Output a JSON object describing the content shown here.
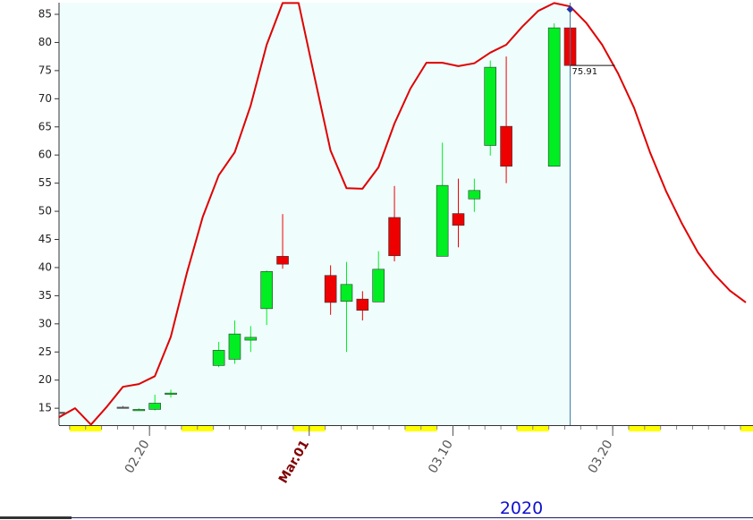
{
  "chart_data": {
    "type": "candlestick",
    "x": [
      "2020-02-14",
      "2020-02-18",
      "2020-02-19",
      "2020-02-20",
      "2020-02-21",
      "2020-02-24",
      "2020-02-25",
      "2020-02-26",
      "2020-02-27",
      "2020-02-28",
      "2020-03-02",
      "2020-03-03",
      "2020-03-04",
      "2020-03-05",
      "2020-03-06",
      "2020-03-09",
      "2020-03-10",
      "2020-03-11",
      "2020-03-12",
      "2020-03-13",
      "2020-03-16",
      "2020-03-17"
    ],
    "open": [
      14.3,
      15.2,
      14.7,
      14.8,
      17.6,
      22.6,
      23.7,
      27.1,
      32.7,
      42.0,
      38.6,
      34.0,
      34.4,
      33.9,
      48.9,
      42.0,
      49.6,
      52.2,
      61.7,
      65.1,
      58.0,
      82.6
    ],
    "high": [
      14.4,
      15.4,
      15.0,
      17.4,
      18.3,
      26.8,
      30.6,
      29.6,
      39.5,
      49.5,
      40.4,
      41.0,
      35.8,
      42.9,
      54.5,
      62.2,
      55.8,
      55.8,
      76.8,
      77.5,
      83.4,
      85.9
    ],
    "low": [
      14.2,
      15.0,
      14.6,
      14.6,
      16.9,
      22.3,
      22.9,
      25.0,
      29.8,
      39.8,
      31.6,
      25.0,
      30.6,
      33.9,
      41.1,
      42.0,
      43.6,
      49.9,
      59.9,
      55.0,
      58.0,
      74.0
    ],
    "close": [
      14.3,
      15.2,
      14.8,
      15.9,
      17.7,
      25.3,
      28.2,
      27.6,
      39.3,
      40.6,
      33.8,
      37.0,
      32.4,
      39.7,
      42.1,
      54.6,
      47.5,
      53.7,
      75.6,
      58.0,
      82.6,
      75.91
    ],
    "up_color": "#00ee22",
    "down_color": "#ee0000",
    "line": {
      "color": "#e00000",
      "x": [
        "2020-02-14",
        "2020-02-15",
        "2020-02-16",
        "2020-02-17",
        "2020-02-18",
        "2020-02-19",
        "2020-02-20",
        "2020-02-21",
        "2020-02-22",
        "2020-02-23",
        "2020-02-24",
        "2020-02-25",
        "2020-02-26",
        "2020-02-27",
        "2020-02-28",
        "2020-02-29",
        "2020-03-01",
        "2020-03-02",
        "2020-03-03",
        "2020-03-04",
        "2020-03-05",
        "2020-03-06",
        "2020-03-07",
        "2020-03-08",
        "2020-03-09",
        "2020-03-10",
        "2020-03-11",
        "2020-03-12",
        "2020-03-13",
        "2020-03-14",
        "2020-03-15",
        "2020-03-16",
        "2020-03-17",
        "2020-03-18",
        "2020-03-19",
        "2020-03-20",
        "2020-03-21",
        "2020-03-22",
        "2020-03-23",
        "2020-03-24",
        "2020-03-25",
        "2020-03-26",
        "2020-03-27",
        "2020-03-28"
      ],
      "values": [
        13.4,
        15.0,
        12.1,
        15.3,
        18.8,
        19.3,
        20.7,
        27.7,
        39.0,
        49.0,
        56.4,
        60.5,
        68.8,
        79.6,
        87.0,
        87.0,
        73.8,
        60.8,
        54.1,
        54.0,
        57.8,
        65.6,
        71.8,
        76.4,
        76.4,
        75.8,
        76.3,
        78.2,
        79.6,
        82.8,
        85.6,
        87.0,
        86.4,
        83.5,
        79.6,
        74.5,
        68.4,
        60.5,
        53.6,
        47.8,
        42.7,
        38.9,
        35.9,
        33.8
      ]
    },
    "crosshair": {
      "x": "2020-03-17",
      "value": 75.91
    },
    "xlim": [
      "2020-02-14",
      "2020-03-28"
    ],
    "xticks": [
      {
        "value": "2020-02-20",
        "label": "02.20"
      },
      {
        "value": "2020-03-01",
        "label": "Mar.01"
      },
      {
        "value": "2020-03-10",
        "label": "03.10"
      },
      {
        "value": "2020-03-20",
        "label": "03.20"
      }
    ],
    "x_axis_label": "2020",
    "ylim": [
      12,
      87.07
    ],
    "yticks": [
      15,
      20,
      25,
      30,
      35,
      40,
      45,
      50,
      55,
      60,
      65,
      70,
      75,
      80,
      85
    ]
  }
}
